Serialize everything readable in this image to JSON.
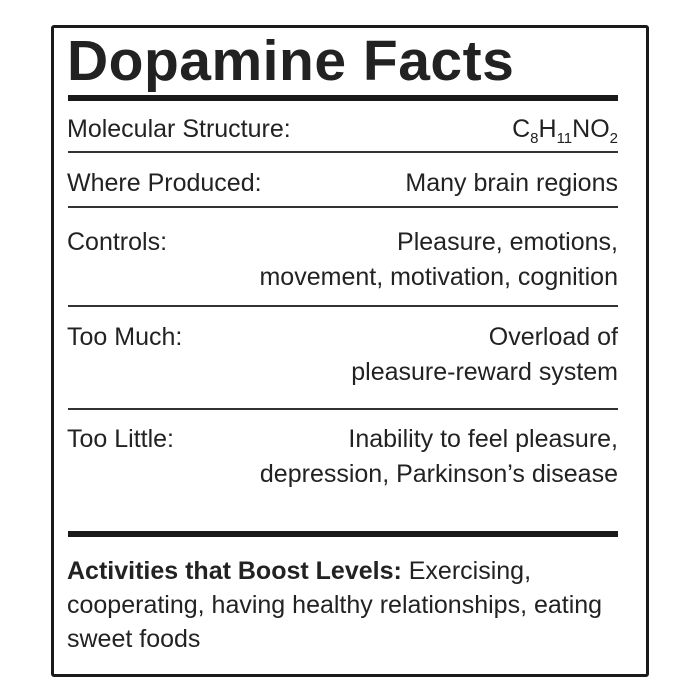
{
  "title": "Dopamine Facts",
  "rows": [
    {
      "label": "Molecular Structure:",
      "formula": [
        {
          "t": "C",
          "s": "8"
        },
        {
          "t": "H",
          "s": "11"
        },
        {
          "t": "NO",
          "s": "2"
        }
      ]
    },
    {
      "label": "Where Produced:",
      "lines": [
        "Many brain regions"
      ]
    },
    {
      "label": "Controls:",
      "lines": [
        "Pleasure, emotions,",
        "movement, motivation, cognition"
      ]
    },
    {
      "label": "Too Much:",
      "lines": [
        "Overload of",
        "pleasure-reward system"
      ]
    },
    {
      "label": "Too Little:",
      "lines": [
        "Inability to feel pleasure,",
        "depression, Parkinson’s disease"
      ]
    }
  ],
  "activities": {
    "label": "Activities that Boost Levels:",
    "text": " Exercising, cooperating, having healthy relationships, eating sweet foods"
  }
}
